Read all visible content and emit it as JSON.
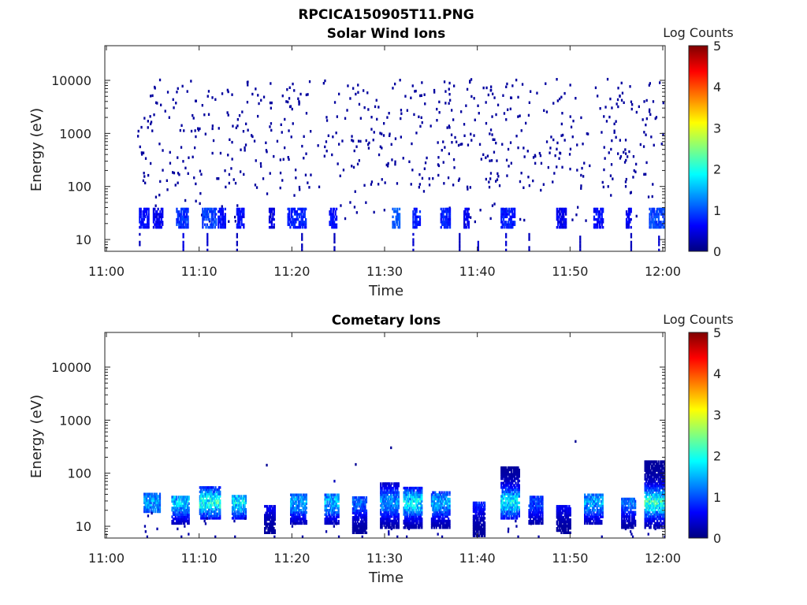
{
  "figure": {
    "title": "RPCICA150905T11.PNG"
  },
  "colorbar": {
    "label": "Log Counts",
    "ticks": [
      "5",
      "4",
      "3",
      "2",
      "1",
      "0"
    ],
    "colors": [
      "#00007f",
      "#0000ff",
      "#0080ff",
      "#00ffff",
      "#80ff80",
      "#ffff00",
      "#ff8000",
      "#ff0000",
      "#7f0000"
    ]
  },
  "chart_data": [
    {
      "type": "heatmap",
      "title": "Solar Wind Ions",
      "xlabel": "Time",
      "ylabel": "Energy (eV)",
      "x_ticks": [
        "11:00",
        "11:10",
        "11:20",
        "11:30",
        "11:40",
        "11:50",
        "12:00"
      ],
      "y_ticks": [
        "10",
        "100",
        "1000",
        "10000"
      ],
      "y_scale": "log",
      "xlim_minutes": [
        0,
        60
      ],
      "ylim": [
        6,
        45000
      ],
      "zlim": [
        0,
        5
      ],
      "zlabel": "Log Counts",
      "bands": [
        [
          3.5,
          4.5,
          0.5
        ],
        [
          5.0,
          6.0,
          0.4
        ],
        [
          7.5,
          8.8,
          0.7
        ],
        [
          10.3,
          11.8,
          0.8
        ],
        [
          12.0,
          12.8,
          0.5
        ],
        [
          14.0,
          14.8,
          0.5
        ],
        [
          17.5,
          18.0,
          0.3
        ],
        [
          19.5,
          21.5,
          0.6
        ],
        [
          24.0,
          24.8,
          0.5
        ],
        [
          30.8,
          31.6,
          0.9
        ],
        [
          33.0,
          33.8,
          0.6
        ],
        [
          36.0,
          37.0,
          0.6
        ],
        [
          38.5,
          39.0,
          0.4
        ],
        [
          42.5,
          44.0,
          0.6
        ],
        [
          48.5,
          49.5,
          0.4
        ],
        [
          52.5,
          53.5,
          0.5
        ],
        [
          56.0,
          56.5,
          0.4
        ],
        [
          58.5,
          60.3,
          0.8
        ]
      ],
      "low_energy_bars": [
        [
          3.5,
          "0.3"
        ],
        [
          8.2,
          "0.5"
        ],
        [
          10.8,
          "0.4"
        ],
        [
          14.0,
          "0.3"
        ],
        [
          21.0,
          "0.3"
        ],
        [
          24.5,
          "0.3"
        ],
        [
          33.0,
          "0.4"
        ],
        [
          38.0,
          "0.3"
        ],
        [
          40.0,
          "0.4"
        ],
        [
          43.0,
          "0.4"
        ],
        [
          45.5,
          "0.3"
        ],
        [
          51.0,
          "0.3"
        ],
        [
          56.5,
          "0.3"
        ],
        [
          59.5,
          "0.4"
        ]
      ]
    },
    {
      "type": "heatmap",
      "title": "Cometary Ions",
      "xlabel": "Time",
      "ylabel": "Energy (eV)",
      "x_ticks": [
        "11:00",
        "11:10",
        "11:20",
        "11:30",
        "11:40",
        "11:50",
        "12:00"
      ],
      "y_ticks": [
        "10",
        "100",
        "1000",
        "10000"
      ],
      "y_scale": "log",
      "xlim_minutes": [
        0,
        60
      ],
      "ylim": [
        6,
        45000
      ],
      "zlim": [
        0,
        5
      ],
      "zlabel": "Log Counts",
      "bursts": [
        [
          4.0,
          5.8,
          20,
          45,
          1.6
        ],
        [
          7.0,
          8.8,
          12,
          40,
          1.8
        ],
        [
          10.0,
          12.2,
          15,
          60,
          2.2
        ],
        [
          13.5,
          15.0,
          15,
          40,
          2.0
        ],
        [
          17.0,
          18.2,
          8,
          27,
          0.6
        ],
        [
          19.8,
          21.5,
          12,
          45,
          1.6
        ],
        [
          23.5,
          25.0,
          12,
          45,
          1.7
        ],
        [
          26.5,
          28.0,
          8,
          40,
          1.2
        ],
        [
          29.5,
          31.5,
          10,
          70,
          1.5
        ],
        [
          32.0,
          34.0,
          10,
          60,
          2.0
        ],
        [
          35.0,
          37.0,
          10,
          50,
          1.6
        ],
        [
          39.5,
          40.8,
          7,
          30,
          0.8
        ],
        [
          42.5,
          44.5,
          15,
          140,
          2.0
        ],
        [
          45.5,
          47.0,
          12,
          40,
          1.0
        ],
        [
          48.5,
          50.0,
          8,
          27,
          0.6
        ],
        [
          51.5,
          53.5,
          12,
          45,
          1.6
        ],
        [
          55.5,
          57.0,
          10,
          35,
          1.2
        ],
        [
          58.0,
          60.3,
          10,
          180,
          2.3
        ]
      ],
      "outliers": [
        [
          17.2,
          150,
          0.1
        ],
        [
          26.8,
          155,
          0.1
        ],
        [
          30.6,
          320,
          0.1
        ],
        [
          50.5,
          420,
          0.1
        ],
        [
          24.5,
          75,
          0.3
        ]
      ]
    }
  ]
}
